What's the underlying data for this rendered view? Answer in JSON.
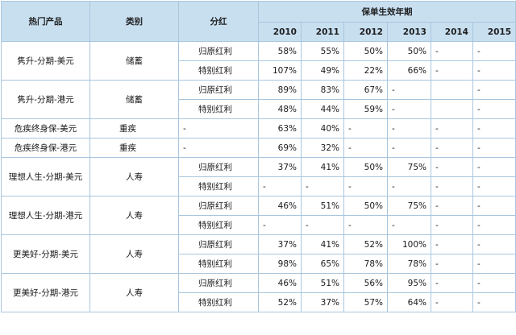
{
  "headers": {
    "product": "热门产品",
    "category": "类别",
    "dividend": "分红",
    "years_title": "保单生效年期",
    "years": [
      "2010",
      "2011",
      "2012",
      "2013",
      "2014",
      "2015"
    ]
  },
  "groups": [
    {
      "product": "隽升-分期-美元",
      "category": "储蓄",
      "category_align": "center",
      "rows": [
        {
          "dividend": "归原红利",
          "values": [
            "58%",
            "55%",
            "50%",
            "50%",
            "-",
            "-"
          ]
        },
        {
          "dividend": "特别红利",
          "values": [
            "107%",
            "49%",
            "22%",
            "66%",
            "-",
            "-"
          ]
        }
      ]
    },
    {
      "product": "隽升-分期-港元",
      "category": "储蓄",
      "category_align": "center",
      "rows": [
        {
          "dividend": "归原红利",
          "values": [
            "89%",
            "83%",
            "67%",
            "-",
            "",
            "-"
          ]
        },
        {
          "dividend": "特别红利",
          "values": [
            "48%",
            "44%",
            "59%",
            "-",
            "",
            "-"
          ]
        }
      ]
    },
    {
      "product": "危疾终身保-美元",
      "category": "重疾",
      "category_align": "left",
      "rows": [
        {
          "dividend": "-",
          "values": [
            "63%",
            "40%",
            "-",
            "-",
            "-",
            "-"
          ]
        }
      ]
    },
    {
      "product": "危疾终身保-港元",
      "category": "重疾",
      "category_align": "left",
      "rows": [
        {
          "dividend": "-",
          "values": [
            "69%",
            "32%",
            "-",
            "-",
            "-",
            "-"
          ]
        }
      ]
    },
    {
      "product": "理想人生-分期-美元",
      "category": "人寿",
      "category_align": "center",
      "rows": [
        {
          "dividend": "归原红利",
          "values": [
            "37%",
            "41%",
            "50%",
            "75%",
            "-",
            "-"
          ]
        },
        {
          "dividend": "特别红利",
          "values": [
            "-",
            "-",
            "-",
            "-",
            "-",
            "-"
          ]
        }
      ]
    },
    {
      "product": "理想人生-分期-港元",
      "category": "人寿",
      "category_align": "center",
      "rows": [
        {
          "dividend": "归原红利",
          "values": [
            "46%",
            "51%",
            "50%",
            "75%",
            "-",
            "-"
          ]
        },
        {
          "dividend": "特别红利",
          "values": [
            "-",
            "-",
            "-",
            "-",
            "-",
            "-"
          ]
        }
      ]
    },
    {
      "product": "更美好-分期-美元",
      "category": "人寿",
      "category_align": "center",
      "rows": [
        {
          "dividend": "归原红利",
          "values": [
            "37%",
            "41%",
            "52%",
            "100%",
            "-",
            "-"
          ]
        },
        {
          "dividend": "特别红利",
          "values": [
            "98%",
            "65%",
            "78%",
            "78%",
            "-",
            "-"
          ]
        }
      ]
    },
    {
      "product": "更美好-分期-港元",
      "category": "人寿",
      "category_align": "center",
      "rows": [
        {
          "dividend": "归原红利",
          "values": [
            "46%",
            "51%",
            "56%",
            "95%",
            "-",
            "-"
          ]
        },
        {
          "dividend": "特别红利",
          "values": [
            "52%",
            "37%",
            "57%",
            "64%",
            "-",
            "-"
          ]
        }
      ]
    }
  ]
}
